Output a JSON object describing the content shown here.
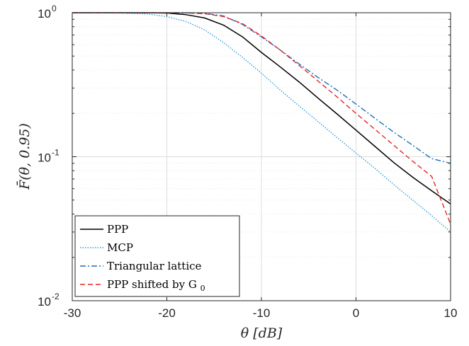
{
  "chart_data": {
    "type": "line",
    "xlabel": "θ [dB]",
    "ylabel": "F̄(θ, 0.95)",
    "xlim": [
      -30,
      10
    ],
    "ylim": [
      0.01,
      1
    ],
    "yscale": "log",
    "grid": true,
    "legend_position": "bottom-left",
    "x_ticks": [
      {
        "value": -30,
        "label": "-30"
      },
      {
        "value": -20,
        "label": "-20"
      },
      {
        "value": -10,
        "label": "-10"
      },
      {
        "value": 0,
        "label": "0"
      },
      {
        "value": 10,
        "label": "10"
      }
    ],
    "y_ticks": [
      {
        "value": 1,
        "base": "10",
        "exp": "0"
      },
      {
        "value": 0.1,
        "base": "10",
        "exp": "-1"
      },
      {
        "value": 0.01,
        "base": "10",
        "exp": "-2"
      }
    ],
    "x": [
      -30,
      -25,
      -22,
      -20,
      -18,
      -16,
      -14,
      -12,
      -10,
      -8,
      -6,
      -4,
      -2,
      0,
      2,
      4,
      6,
      8,
      10
    ],
    "series": [
      {
        "name": "PPP",
        "color": "#000000",
        "dash": "solid",
        "values": [
          1.0,
          1.0,
          1.0,
          0.995,
          0.97,
          0.92,
          0.82,
          0.68,
          0.53,
          0.42,
          0.33,
          0.255,
          0.198,
          0.153,
          0.118,
          0.091,
          0.072,
          0.058,
          0.047
        ]
      },
      {
        "name": "MCP",
        "color": "#3a9ad9",
        "dash": "dotted",
        "values": [
          1.0,
          0.995,
          0.98,
          0.94,
          0.87,
          0.76,
          0.62,
          0.49,
          0.38,
          0.29,
          0.225,
          0.175,
          0.136,
          0.106,
          0.083,
          0.064,
          0.05,
          0.039,
          0.03
        ]
      },
      {
        "name": "Triangular lattice",
        "color": "#1f6fb5",
        "dash": "dashdot",
        "values": [
          1.0,
          1.0,
          1.0,
          1.0,
          1.0,
          0.99,
          0.95,
          0.83,
          0.68,
          0.55,
          0.44,
          0.355,
          0.29,
          0.232,
          0.185,
          0.148,
          0.12,
          0.097,
          0.09
        ]
      },
      {
        "name": "PPP shifted by G",
        "name_sub": "0",
        "color": "#e8262b",
        "dash": "dashed",
        "values": [
          1.0,
          1.0,
          1.0,
          1.0,
          0.998,
          0.985,
          0.94,
          0.84,
          0.69,
          0.55,
          0.43,
          0.335,
          0.26,
          0.2,
          0.155,
          0.12,
          0.093,
          0.073,
          0.034
        ]
      }
    ]
  }
}
